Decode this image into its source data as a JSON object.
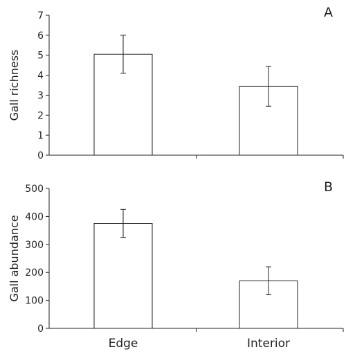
{
  "chart_data": [
    {
      "type": "bar",
      "panel_label": "A",
      "categories": [
        "Edge",
        "Interior"
      ],
      "values": [
        5.05,
        3.45
      ],
      "error": [
        0.95,
        1.0
      ],
      "ylabel": "Gall richness",
      "xlabel": "",
      "ylim": [
        0,
        7
      ],
      "yticks": [
        0,
        1,
        2,
        3,
        4,
        5,
        6,
        7
      ],
      "show_category_labels": false,
      "grid": false
    },
    {
      "type": "bar",
      "panel_label": "B",
      "categories": [
        "Edge",
        "Interior"
      ],
      "values": [
        375,
        170
      ],
      "error": [
        50,
        50
      ],
      "ylabel": "Gall abundance",
      "xlabel": "",
      "ylim": [
        0,
        500
      ],
      "yticks": [
        0,
        100,
        200,
        300,
        400,
        500
      ],
      "show_category_labels": true,
      "grid": false
    }
  ],
  "colors": {
    "ink": "#231f20",
    "bar_fill": "#ffffff"
  }
}
